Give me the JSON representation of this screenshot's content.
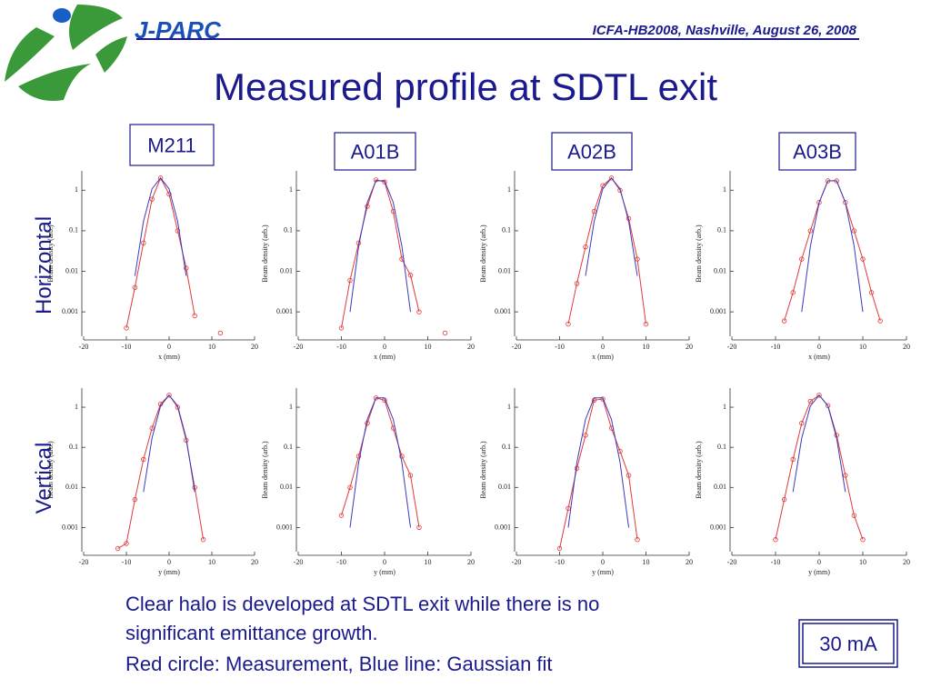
{
  "header": {
    "logo": "J-PARC",
    "event": "ICFA-HB2008, Nashville, August 26, 2008"
  },
  "title": "Measured profile at SDTL exit",
  "columns": [
    "M211",
    "A01B",
    "A02B",
    "A03B"
  ],
  "rows": [
    "Horizontal",
    "Vertical"
  ],
  "notes": [
    "Clear halo is developed at SDTL exit while there is no",
    "significant emittance growth.",
    "Red circle: Measurement, Blue line: Gaussian fit"
  ],
  "badge": "30 mA",
  "chart_data": [
    {
      "type": "line",
      "xlabel": "x (mm)",
      "ylabel": "Beam density (arb.)",
      "x": [
        -12,
        -10,
        -8,
        -6,
        -4,
        -2,
        0,
        2,
        4,
        6,
        8,
        10,
        12,
        14
      ],
      "xlim": [
        -20,
        20
      ],
      "xticks": [
        -20,
        -10,
        0,
        10,
        20
      ],
      "ylim": [
        0.00025,
        3
      ],
      "yticks": [
        0.001,
        0.01,
        0.1,
        1
      ],
      "log_scale": true,
      "series": [
        {
          "color": "#e03a3a",
          "marker": "circle",
          "values": [
            null,
            0.0004,
            0.004,
            0.05,
            0.6,
            2,
            0.8,
            0.1,
            0.012,
            0.0008,
            null,
            null,
            0.0003,
            null
          ]
        },
        {
          "color": "#3a3ac0",
          "marker": "none",
          "values": [
            null,
            null,
            0.0077,
            0.17,
            1.08,
            2,
            1.08,
            0.17,
            0.0077,
            null,
            null,
            null,
            null,
            null
          ]
        }
      ]
    },
    {
      "type": "line",
      "xlabel": "x (mm)",
      "ylabel": "Beam density (arb.)",
      "x": [
        -12,
        -10,
        -8,
        -6,
        -4,
        -2,
        0,
        2,
        4,
        6,
        8,
        10,
        12,
        14
      ],
      "xlim": [
        -20,
        20
      ],
      "xticks": [
        -20,
        -10,
        0,
        10,
        20
      ],
      "ylim": [
        0.00025,
        3
      ],
      "yticks": [
        0.001,
        0.01,
        0.1,
        1
      ],
      "log_scale": true,
      "series": [
        {
          "color": "#e03a3a",
          "marker": "circle",
          "values": [
            null,
            0.0004,
            0.006,
            0.05,
            0.4,
            1.8,
            1.6,
            0.3,
            0.02,
            0.008,
            0.001,
            null,
            null,
            0.0003
          ]
        },
        {
          "color": "#3a3ac0",
          "marker": "none",
          "values": [
            null,
            null,
            0.001,
            0.042,
            0.5,
            1.71,
            1.71,
            0.5,
            0.042,
            0.001,
            null,
            null,
            null,
            null
          ]
        }
      ]
    },
    {
      "type": "line",
      "xlabel": "x (mm)",
      "ylabel": "Beam density (arb.)",
      "x": [
        -12,
        -10,
        -8,
        -6,
        -4,
        -2,
        0,
        2,
        4,
        6,
        8,
        10,
        12,
        14
      ],
      "xlim": [
        -20,
        20
      ],
      "xticks": [
        -20,
        -10,
        0,
        10,
        20
      ],
      "ylim": [
        0.00025,
        3
      ],
      "yticks": [
        0.001,
        0.01,
        0.1,
        1
      ],
      "log_scale": true,
      "series": [
        {
          "color": "#e03a3a",
          "marker": "circle",
          "values": [
            null,
            null,
            0.0005,
            0.005,
            0.04,
            0.3,
            1.3,
            2,
            1,
            0.2,
            0.02,
            0.0005,
            null,
            null
          ]
        },
        {
          "color": "#3a3ac0",
          "marker": "none",
          "values": [
            null,
            null,
            null,
            null,
            0.0077,
            0.17,
            1.08,
            2,
            1.08,
            0.17,
            0.0077,
            null,
            null,
            null
          ]
        }
      ]
    },
    {
      "type": "line",
      "xlabel": "x (mm)",
      "ylabel": "Beam density (arb.)",
      "x": [
        -12,
        -10,
        -8,
        -6,
        -4,
        -2,
        0,
        2,
        4,
        6,
        8,
        10,
        12,
        14
      ],
      "xlim": [
        -20,
        20
      ],
      "xticks": [
        -20,
        -10,
        0,
        10,
        20
      ],
      "ylim": [
        0.00025,
        3
      ],
      "yticks": [
        0.001,
        0.01,
        0.1,
        1
      ],
      "log_scale": true,
      "series": [
        {
          "color": "#e03a3a",
          "marker": "circle",
          "values": [
            null,
            null,
            0.0006,
            0.003,
            0.02,
            0.1,
            0.5,
            1.7,
            1.7,
            0.5,
            0.1,
            0.02,
            0.003,
            0.0006
          ]
        },
        {
          "color": "#3a3ac0",
          "marker": "none",
          "values": [
            null,
            null,
            null,
            null,
            0.001,
            0.042,
            0.5,
            1.71,
            1.71,
            0.5,
            0.042,
            0.001,
            null,
            null
          ]
        }
      ]
    },
    {
      "type": "line",
      "xlabel": "y (mm)",
      "ylabel": "Beam density (arb.)",
      "x": [
        -12,
        -10,
        -8,
        -6,
        -4,
        -2,
        0,
        2,
        4,
        6,
        8,
        10,
        12,
        14
      ],
      "xlim": [
        -20,
        20
      ],
      "xticks": [
        -20,
        -10,
        0,
        10,
        20
      ],
      "ylim": [
        0.00025,
        3
      ],
      "yticks": [
        0.001,
        0.01,
        0.1,
        1
      ],
      "log_scale": true,
      "series": [
        {
          "color": "#e03a3a",
          "marker": "circle",
          "values": [
            0.0003,
            0.0004,
            0.005,
            0.05,
            0.3,
            1.2,
            2,
            1,
            0.15,
            0.01,
            0.0005,
            null,
            null,
            null
          ]
        },
        {
          "color": "#3a3ac0",
          "marker": "none",
          "values": [
            null,
            null,
            null,
            0.0077,
            0.17,
            1.08,
            2,
            1.08,
            0.17,
            0.0077,
            null,
            null,
            null,
            null
          ]
        }
      ]
    },
    {
      "type": "line",
      "xlabel": "y (mm)",
      "ylabel": "Beam density (arb.)",
      "x": [
        -12,
        -10,
        -8,
        -6,
        -4,
        -2,
        0,
        2,
        4,
        6,
        8,
        10,
        12,
        14
      ],
      "xlim": [
        -20,
        20
      ],
      "xticks": [
        -20,
        -10,
        0,
        10,
        20
      ],
      "ylim": [
        0.00025,
        3
      ],
      "yticks": [
        0.001,
        0.01,
        0.1,
        1
      ],
      "log_scale": true,
      "series": [
        {
          "color": "#e03a3a",
          "marker": "circle",
          "values": [
            null,
            0.002,
            0.01,
            0.06,
            0.4,
            1.7,
            1.5,
            0.3,
            0.06,
            0.02,
            0.001,
            null,
            null,
            null
          ]
        },
        {
          "color": "#3a3ac0",
          "marker": "none",
          "values": [
            null,
            null,
            0.001,
            0.042,
            0.5,
            1.71,
            1.71,
            0.5,
            0.042,
            0.001,
            null,
            null,
            null,
            null
          ]
        }
      ]
    },
    {
      "type": "line",
      "xlabel": "y (mm)",
      "ylabel": "Beam density (arb.)",
      "x": [
        -12,
        -10,
        -8,
        -6,
        -4,
        -2,
        0,
        2,
        4,
        6,
        8,
        10,
        12,
        14
      ],
      "xlim": [
        -20,
        20
      ],
      "xticks": [
        -20,
        -10,
        0,
        10,
        20
      ],
      "ylim": [
        0.00025,
        3
      ],
      "yticks": [
        0.001,
        0.01,
        0.1,
        1
      ],
      "log_scale": true,
      "series": [
        {
          "color": "#e03a3a",
          "marker": "circle",
          "values": [
            null,
            0.0003,
            0.003,
            0.03,
            0.2,
            1.5,
            1.6,
            0.3,
            0.08,
            0.02,
            0.0005,
            null,
            null,
            null
          ]
        },
        {
          "color": "#3a3ac0",
          "marker": "none",
          "values": [
            null,
            null,
            0.001,
            0.042,
            0.5,
            1.71,
            1.71,
            0.5,
            0.042,
            0.001,
            null,
            null,
            null,
            null
          ]
        }
      ]
    },
    {
      "type": "line",
      "xlabel": "y (mm)",
      "ylabel": "Beam density (arb.)",
      "x": [
        -12,
        -10,
        -8,
        -6,
        -4,
        -2,
        0,
        2,
        4,
        6,
        8,
        10,
        12,
        14
      ],
      "xlim": [
        -20,
        20
      ],
      "xticks": [
        -20,
        -10,
        0,
        10,
        20
      ],
      "ylim": [
        0.00025,
        3
      ],
      "yticks": [
        0.001,
        0.01,
        0.1,
        1
      ],
      "log_scale": true,
      "series": [
        {
          "color": "#e03a3a",
          "marker": "circle",
          "values": [
            null,
            0.0005,
            0.005,
            0.05,
            0.4,
            1.4,
            2,
            1.1,
            0.2,
            0.02,
            0.002,
            0.0005,
            null,
            null
          ]
        },
        {
          "color": "#3a3ac0",
          "marker": "none",
          "values": [
            null,
            null,
            null,
            0.0077,
            0.17,
            1.08,
            2,
            1.08,
            0.17,
            0.0077,
            null,
            null,
            null,
            null
          ]
        }
      ]
    }
  ]
}
